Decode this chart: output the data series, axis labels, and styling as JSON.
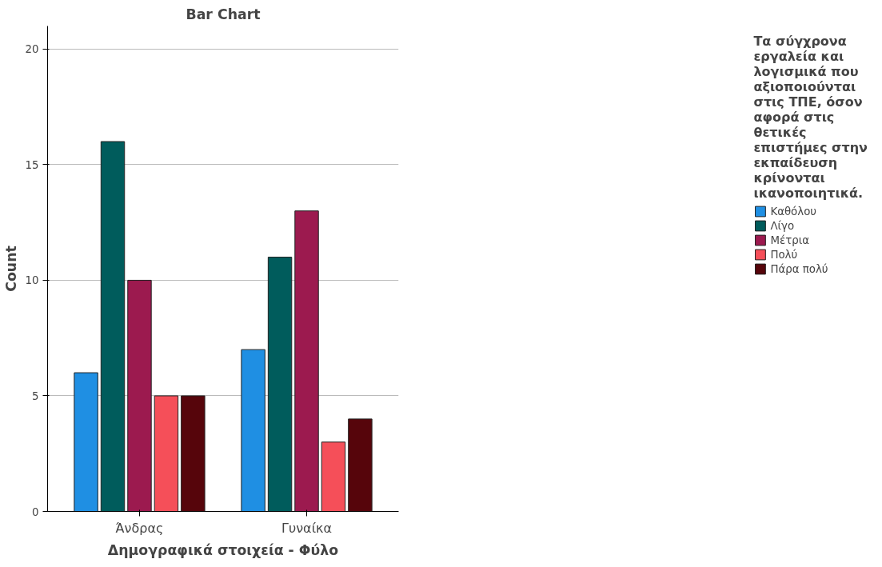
{
  "chart_data": {
    "type": "bar",
    "title": "Bar Chart",
    "xlabel": "Δημογραφικά στοιχεία - Φύλο",
    "ylabel": "Count",
    "legend_title": "Τα σύγχρονα εργαλεία και λογισμικά που αξιοποιούνται στις ΤΠΕ, όσον αφορά στις θετικές επιστήμες στην εκπαίδευση κρίνονται ικανοποιητικά.",
    "categories": [
      "Άνδρας",
      "Γυναίκα"
    ],
    "series": [
      {
        "name": "Καθόλου",
        "color": "#1f8fe3",
        "values": [
          6,
          7
        ]
      },
      {
        "name": "Λίγο",
        "color": "#005c5c",
        "values": [
          16,
          11
        ]
      },
      {
        "name": "Μέτρια",
        "color": "#9c1a4f",
        "values": [
          10,
          13
        ]
      },
      {
        "name": "Πολύ",
        "color": "#f54f59",
        "values": [
          5,
          3
        ]
      },
      {
        "name": "Πάρα πολύ",
        "color": "#56050b",
        "values": [
          5,
          4
        ]
      }
    ],
    "ylim": [
      0,
      21
    ],
    "yticks": [
      0,
      5,
      10,
      15,
      20
    ],
    "grid": "y",
    "legend": "right"
  }
}
